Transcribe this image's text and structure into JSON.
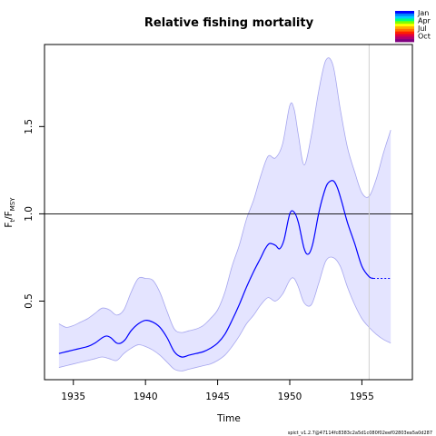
{
  "chart_data": {
    "type": "line",
    "title": "Relative fishing mortality",
    "xlabel": "Time",
    "ylabel_main": "F",
    "ylabel_sub1": "t",
    "ylabel_slash": "/F",
    "ylabel_sub2": "MSY",
    "xlim": [
      1933,
      1958.5
    ],
    "ylim": [
      0.05,
      1.97
    ],
    "xticks": [
      1935,
      1940,
      1945,
      1950,
      1955
    ],
    "yticks": [
      0.5,
      1.0,
      1.5
    ],
    "ytick_labels": [
      "0.5",
      "1.0",
      "1.5"
    ],
    "reference_line": 1.0,
    "vertical_line": 1955.5,
    "colors": {
      "estimate": "#0000ff",
      "band_fill": "#e4e4ff",
      "band_edge": "#a6a6ee",
      "reference": "#000000",
      "vertical": "#cfcfcf"
    },
    "series": [
      {
        "role": "estimate",
        "x": [
          1934.0,
          1934.5,
          1935.0,
          1935.5,
          1936.0,
          1936.5,
          1937.0,
          1937.3,
          1937.6,
          1938.0,
          1938.3,
          1938.6,
          1939.0,
          1939.5,
          1940.0,
          1940.5,
          1941.0,
          1941.5,
          1942.0,
          1942.5,
          1943.0,
          1943.5,
          1944.0,
          1944.5,
          1945.0,
          1945.5,
          1946.0,
          1946.5,
          1947.0,
          1947.5,
          1948.0,
          1948.3,
          1948.6,
          1949.0,
          1949.3,
          1949.6,
          1950.0,
          1950.3,
          1950.6,
          1951.0,
          1951.3,
          1951.6,
          1952.0,
          1952.3,
          1952.6,
          1953.0,
          1953.3,
          1953.6,
          1954.0,
          1954.5,
          1955.0,
          1955.5,
          1955.8
        ],
        "y": [
          0.2,
          0.21,
          0.22,
          0.23,
          0.24,
          0.26,
          0.29,
          0.3,
          0.29,
          0.26,
          0.26,
          0.28,
          0.33,
          0.37,
          0.39,
          0.38,
          0.35,
          0.29,
          0.21,
          0.18,
          0.19,
          0.2,
          0.21,
          0.23,
          0.26,
          0.31,
          0.39,
          0.48,
          0.58,
          0.67,
          0.75,
          0.8,
          0.83,
          0.82,
          0.8,
          0.85,
          1.0,
          1.01,
          0.95,
          0.8,
          0.77,
          0.83,
          1.0,
          1.1,
          1.17,
          1.19,
          1.15,
          1.07,
          0.95,
          0.83,
          0.7,
          0.64,
          0.63
        ]
      },
      {
        "role": "forecast",
        "x": [
          1955.8,
          1957.0
        ],
        "y": [
          0.63,
          0.63
        ]
      },
      {
        "role": "upper",
        "x": [
          1934.0,
          1934.5,
          1935.0,
          1935.5,
          1936.0,
          1936.5,
          1937.0,
          1937.5,
          1938.0,
          1938.5,
          1939.0,
          1939.5,
          1940.0,
          1940.5,
          1941.0,
          1941.5,
          1942.0,
          1942.5,
          1943.0,
          1943.5,
          1944.0,
          1944.5,
          1945.0,
          1945.5,
          1946.0,
          1946.5,
          1947.0,
          1947.5,
          1948.0,
          1948.5,
          1949.0,
          1949.5,
          1950.0,
          1950.3,
          1950.6,
          1951.0,
          1951.5,
          1952.0,
          1952.5,
          1953.0,
          1953.5,
          1954.0,
          1954.5,
          1955.0,
          1955.5,
          1956.0,
          1956.5,
          1957.0
        ],
        "y": [
          0.37,
          0.35,
          0.36,
          0.38,
          0.4,
          0.43,
          0.46,
          0.45,
          0.42,
          0.45,
          0.55,
          0.63,
          0.63,
          0.62,
          0.55,
          0.44,
          0.34,
          0.32,
          0.33,
          0.34,
          0.36,
          0.4,
          0.45,
          0.55,
          0.7,
          0.82,
          0.97,
          1.08,
          1.22,
          1.33,
          1.32,
          1.4,
          1.62,
          1.6,
          1.45,
          1.28,
          1.45,
          1.7,
          1.88,
          1.85,
          1.6,
          1.38,
          1.24,
          1.12,
          1.1,
          1.2,
          1.35,
          1.48
        ]
      },
      {
        "role": "lower",
        "x": [
          1934.0,
          1934.5,
          1935.0,
          1935.5,
          1936.0,
          1936.5,
          1937.0,
          1937.5,
          1938.0,
          1938.5,
          1939.0,
          1939.5,
          1940.0,
          1940.5,
          1941.0,
          1941.5,
          1942.0,
          1942.5,
          1943.0,
          1943.5,
          1944.0,
          1944.5,
          1945.0,
          1945.5,
          1946.0,
          1946.5,
          1947.0,
          1947.5,
          1948.0,
          1948.5,
          1949.0,
          1949.5,
          1950.0,
          1950.3,
          1950.6,
          1951.0,
          1951.5,
          1952.0,
          1952.5,
          1953.0,
          1953.5,
          1954.0,
          1954.5,
          1955.0,
          1955.5,
          1956.0,
          1956.5,
          1957.0
        ],
        "y": [
          0.12,
          0.13,
          0.14,
          0.15,
          0.16,
          0.17,
          0.18,
          0.17,
          0.16,
          0.2,
          0.23,
          0.25,
          0.24,
          0.22,
          0.19,
          0.15,
          0.11,
          0.1,
          0.11,
          0.12,
          0.13,
          0.14,
          0.16,
          0.19,
          0.24,
          0.3,
          0.37,
          0.42,
          0.48,
          0.52,
          0.5,
          0.54,
          0.62,
          0.63,
          0.58,
          0.49,
          0.48,
          0.6,
          0.73,
          0.75,
          0.7,
          0.58,
          0.48,
          0.4,
          0.35,
          0.31,
          0.28,
          0.26
        ]
      }
    ],
    "legend": {
      "placement": "top-right",
      "entries": [
        "Jan",
        "Apr",
        "Jul",
        "Oct"
      ],
      "colors": [
        "#0000ff",
        "#0080ff",
        "#00ccff",
        "#00ff80",
        "#80ff00",
        "#ffff00",
        "#ffb000",
        "#ff7000",
        "#ff2000",
        "#e00040",
        "#b00070",
        "#800080"
      ]
    },
    "footer": "spict_v1.2.7@47114fc8383c2a5d1c080f02eef02803ea5a0d287"
  }
}
